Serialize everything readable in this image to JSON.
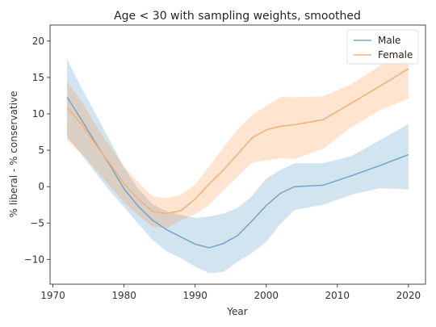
{
  "chart_data": {
    "type": "line",
    "title": "Age < 30 with sampling weights, smoothed",
    "xlabel": "Year",
    "ylabel": "% liberal - % conservative",
    "xlim": [
      1969.6,
      2022.4
    ],
    "ylim": [
      -13.4,
      22.2
    ],
    "xticks": [
      1970,
      1980,
      1990,
      2000,
      2010,
      2020
    ],
    "yticks": [
      -10,
      -5,
      0,
      5,
      10,
      15,
      20
    ],
    "legend": "top-right",
    "grid": false,
    "series": [
      {
        "name": "Male",
        "color": "#1f77b4",
        "line_color": "#7aa6cf",
        "x": [
          1972,
          1974,
          1976,
          1978,
          1980,
          1982,
          1984,
          1986,
          1988,
          1990,
          1992,
          1994,
          1996,
          1998,
          2000,
          2002,
          2004,
          2008,
          2012,
          2016,
          2020
        ],
        "y": [
          12.3,
          9.2,
          6.0,
          3.0,
          -0.3,
          -2.7,
          -4.6,
          -5.9,
          -6.9,
          -7.9,
          -8.4,
          -7.8,
          -6.7,
          -4.7,
          -2.6,
          -0.9,
          0.0,
          0.2,
          1.5,
          2.9,
          4.4
        ],
        "lower": [
          6.8,
          4.4,
          1.9,
          -0.6,
          -2.8,
          -5.1,
          -7.3,
          -8.9,
          -9.8,
          -11.0,
          -11.9,
          -11.7,
          -10.3,
          -9.1,
          -7.6,
          -5.1,
          -3.2,
          -2.5,
          -1.1,
          -0.2,
          -0.4
        ],
        "upper": [
          17.5,
          13.6,
          10.0,
          6.4,
          2.6,
          -0.3,
          -2.4,
          -3.4,
          -3.9,
          -4.3,
          -4.1,
          -3.7,
          -2.9,
          -1.3,
          1.1,
          2.3,
          3.2,
          3.2,
          4.2,
          6.4,
          8.6
        ]
      },
      {
        "name": "Female",
        "color": "#ff7f0e",
        "line_color": "#f5b178",
        "x": [
          1972,
          1974,
          1976,
          1978,
          1980,
          1982,
          1984,
          1986,
          1988,
          1990,
          1992,
          1994,
          1996,
          1998,
          2000,
          2002,
          2004,
          2008,
          2012,
          2016,
          2020
        ],
        "y": [
          10.9,
          8.6,
          5.8,
          3.2,
          0.4,
          -1.7,
          -3.4,
          -3.7,
          -3.3,
          -1.7,
          0.4,
          2.3,
          4.5,
          6.7,
          7.8,
          8.3,
          8.5,
          9.2,
          11.5,
          13.8,
          16.2
        ],
        "lower": [
          6.4,
          4.6,
          2.4,
          0.1,
          -2.2,
          -3.9,
          -5.5,
          -5.7,
          -4.6,
          -3.8,
          -2.5,
          -0.5,
          1.4,
          3.3,
          3.6,
          3.9,
          3.8,
          5.2,
          8.2,
          10.5,
          12.1
        ],
        "upper": [
          14.4,
          11.7,
          8.5,
          5.6,
          2.8,
          0.6,
          -1.3,
          -1.6,
          -1.1,
          0.3,
          2.8,
          5.4,
          7.9,
          9.8,
          11.1,
          12.3,
          12.3,
          12.4,
          14.1,
          16.6,
          20.0
        ]
      }
    ]
  }
}
